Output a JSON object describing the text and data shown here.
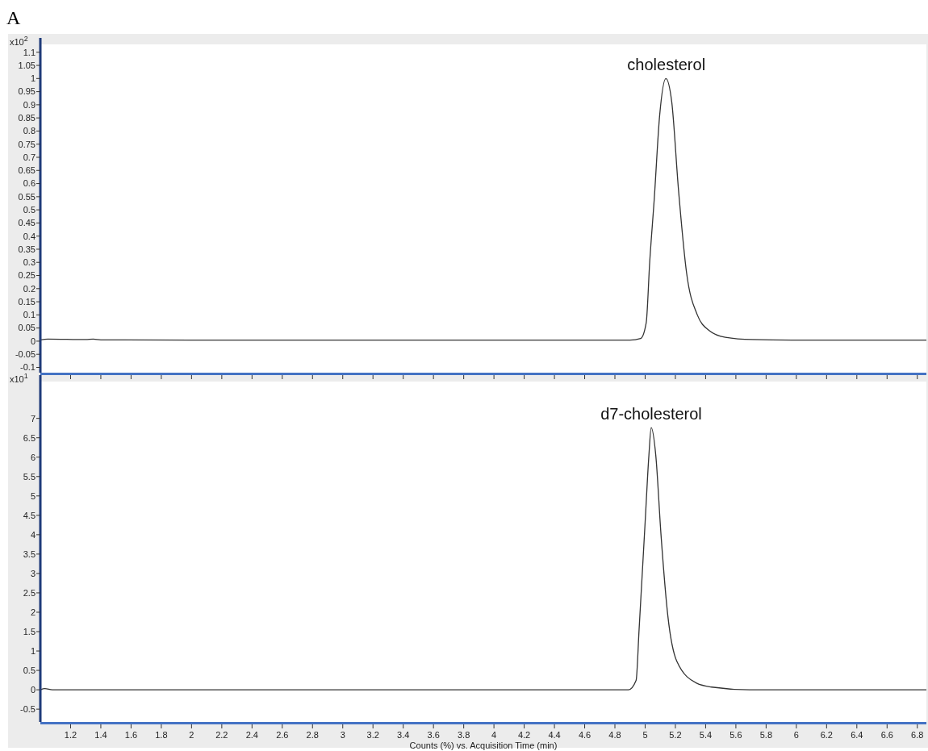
{
  "chart_data": [
    {
      "type": "line",
      "title": "A",
      "ylabel": "x10$^{2}$",
      "xlim": [
        1.0,
        6.86
      ],
      "ylim": [
        -0.12,
        1.13
      ],
      "tick_labels": "y",
      "grid": false,
      "marker": "none",
      "line_style": "solid",
      "yticks": [
        -0.1,
        -0.05,
        0,
        0.05,
        0.1,
        0.15,
        0.2,
        0.25,
        0.3,
        0.35,
        0.4,
        0.45,
        0.5,
        0.55,
        0.6,
        0.65,
        0.7,
        0.75,
        0.8,
        0.85,
        0.9,
        0.95,
        1,
        1.05,
        1.1
      ],
      "xticks": [
        1.2,
        1.4,
        1.6,
        1.8,
        2,
        2.2,
        2.4,
        2.6,
        2.8,
        3,
        3.2,
        3.4,
        3.6,
        3.8,
        4,
        4.2,
        4.4,
        4.6,
        4.8,
        5,
        5.2,
        5.4,
        5.6,
        5.8,
        6,
        6.2,
        6.4,
        6.6,
        6.8
      ],
      "annotations": [
        {
          "text": "cholesterol",
          "x": 5.14,
          "y": 1.0
        }
      ],
      "series": [
        {
          "color": "#333333",
          "x": [
            1.0,
            1.05,
            1.3,
            1.35,
            1.4,
            2,
            3,
            4,
            4.9,
            4.97,
            5.007,
            5.03,
            5.06,
            5.096,
            5.137,
            5.176,
            5.22,
            5.274,
            5.345,
            5.425,
            5.53,
            5.71,
            5.97,
            6.86
          ],
          "values": [
            0.005,
            0.008,
            0.006,
            0.008,
            0.005,
            0.004,
            0.004,
            0.004,
            0.004,
            0.01,
            0.07,
            0.3,
            0.54,
            0.86,
            1.0,
            0.91,
            0.58,
            0.26,
            0.1,
            0.04,
            0.015,
            0.006,
            0.004,
            0.004
          ]
        }
      ]
    },
    {
      "type": "line",
      "ylabel": "x10$^{1}$",
      "xlabel": "Counts (%) vs. Acquisition Time (min)",
      "xlim": [
        1.0,
        6.86
      ],
      "ylim": [
        -0.83,
        7.95
      ],
      "grid": false,
      "marker": "none",
      "line_style": "solid",
      "yticks": [
        -0.5,
        0,
        0.5,
        1,
        1.5,
        2,
        2.5,
        3,
        3.5,
        4,
        4.5,
        5,
        5.5,
        6,
        6.5,
        7
      ],
      "xticks": [
        1.2,
        1.4,
        1.6,
        1.8,
        2,
        2.2,
        2.4,
        2.6,
        2.8,
        3,
        3.2,
        3.4,
        3.6,
        3.8,
        4,
        4.2,
        4.4,
        4.6,
        4.8,
        5,
        5.2,
        5.4,
        5.6,
        5.8,
        6,
        6.2,
        6.4,
        6.6,
        6.8
      ],
      "annotations": [
        {
          "text": "d7-cholesterol",
          "x": 5.04,
          "y": 6.76
        }
      ],
      "series": [
        {
          "color": "#333333",
          "x": [
            1.0,
            1.03,
            1.08,
            1.5,
            2.5,
            3.5,
            4.5,
            4.89,
            4.94,
            4.96,
            5.0,
            5.025,
            5.04,
            5.07,
            5.105,
            5.15,
            5.21,
            5.34,
            5.44,
            5.69,
            6.86
          ],
          "values": [
            0.0,
            0.03,
            0.0,
            0.0,
            0.0,
            0.0,
            0.0,
            0.0,
            0.24,
            1.56,
            4.33,
            6.06,
            6.76,
            6.06,
            3.99,
            1.91,
            0.73,
            0.17,
            0.07,
            0.0,
            0.0
          ]
        }
      ]
    }
  ]
}
